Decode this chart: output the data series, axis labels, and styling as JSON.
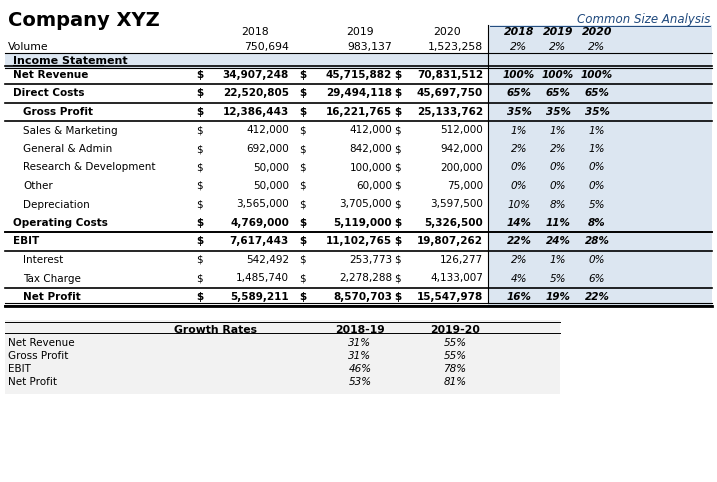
{
  "title_left": "Company XYZ",
  "title_right": "Common Size Analysis",
  "bg_color": "#ffffff",
  "header_bg": "#dce6f1",
  "years": [
    "2018",
    "2019",
    "2020"
  ],
  "volume_label": "Volume",
  "volume_values": [
    "750,694",
    "983,137",
    "1,523,258"
  ],
  "volume_pct": [
    "2%",
    "2%",
    "2%"
  ],
  "income_statement_label": "Income Statement",
  "rows": [
    {
      "label": "Net Revenue",
      "sign": [
        "$",
        "$",
        "$"
      ],
      "values": [
        "34,907,248",
        "45,715,882",
        "70,831,512"
      ],
      "pct": [
        "100%",
        "100%",
        "100%"
      ],
      "style": "bold_top_bottom",
      "indent": 0
    },
    {
      "label": "Direct Costs",
      "sign": [
        "$",
        "$",
        "$"
      ],
      "values": [
        "22,520,805",
        "29,494,118",
        "45,697,750"
      ],
      "pct": [
        "65%",
        "65%",
        "65%"
      ],
      "style": "bold_bottom",
      "indent": 0
    },
    {
      "label": "Gross Profit",
      "sign": [
        "$",
        "$",
        "$"
      ],
      "values": [
        "12,386,443",
        "16,221,765",
        "25,133,762"
      ],
      "pct": [
        "35%",
        "35%",
        "35%"
      ],
      "style": "bold_bottom",
      "indent": 1
    },
    {
      "label": "Sales & Marketing",
      "sign": [
        "$",
        "$",
        "$"
      ],
      "values": [
        "412,000",
        "412,000",
        "512,000"
      ],
      "pct": [
        "1%",
        "1%",
        "1%"
      ],
      "style": "normal",
      "indent": 1
    },
    {
      "label": "General & Admin",
      "sign": [
        "$",
        "$",
        "$"
      ],
      "values": [
        "692,000",
        "842,000",
        "942,000"
      ],
      "pct": [
        "2%",
        "2%",
        "1%"
      ],
      "style": "normal",
      "indent": 1
    },
    {
      "label": "Research & Development",
      "sign": [
        "$",
        "$",
        "$"
      ],
      "values": [
        "50,000",
        "100,000",
        "200,000"
      ],
      "pct": [
        "0%",
        "0%",
        "0%"
      ],
      "style": "normal",
      "indent": 1
    },
    {
      "label": "Other",
      "sign": [
        "$",
        "$",
        "$"
      ],
      "values": [
        "50,000",
        "60,000",
        "75,000"
      ],
      "pct": [
        "0%",
        "0%",
        "0%"
      ],
      "style": "normal",
      "indent": 1
    },
    {
      "label": "Depreciation",
      "sign": [
        "$",
        "$",
        "$"
      ],
      "values": [
        "3,565,000",
        "3,705,000",
        "3,597,500"
      ],
      "pct": [
        "10%",
        "8%",
        "5%"
      ],
      "style": "normal",
      "indent": 1
    },
    {
      "label": "Operating Costs",
      "sign": [
        "$",
        "$",
        "$"
      ],
      "values": [
        "4,769,000",
        "5,119,000",
        "5,326,500"
      ],
      "pct": [
        "14%",
        "11%",
        "8%"
      ],
      "style": "bold_bottom",
      "indent": 0
    },
    {
      "label": "EBIT",
      "sign": [
        "$",
        "$",
        "$"
      ],
      "values": [
        "7,617,443",
        "11,102,765",
        "19,807,262"
      ],
      "pct": [
        "22%",
        "24%",
        "28%"
      ],
      "style": "bold_top_bottom",
      "indent": 0
    },
    {
      "label": "Interest",
      "sign": [
        "$",
        "$",
        "$"
      ],
      "values": [
        "542,492",
        "253,773",
        "126,277"
      ],
      "pct": [
        "2%",
        "1%",
        "0%"
      ],
      "style": "normal",
      "indent": 1
    },
    {
      "label": "Tax Charge",
      "sign": [
        "$",
        "$",
        "$"
      ],
      "values": [
        "1,485,740",
        "2,278,288",
        "4,133,007"
      ],
      "pct": [
        "4%",
        "5%",
        "6%"
      ],
      "style": "normal",
      "indent": 1
    },
    {
      "label": "Net Profit",
      "sign": [
        "$",
        "$",
        "$"
      ],
      "values": [
        "5,589,211",
        "8,570,703",
        "15,547,978"
      ],
      "pct": [
        "16%",
        "19%",
        "22%"
      ],
      "style": "bold_top_bottom",
      "indent": 1
    }
  ],
  "growth_rows": [
    {
      "label": "Net Revenue",
      "y1819": "31%",
      "y1920": "55%"
    },
    {
      "label": "Gross Profit",
      "y1819": "31%",
      "y1920": "55%"
    },
    {
      "label": "EBIT",
      "y1819": "46%",
      "y1920": "78%"
    },
    {
      "label": "Net Profit",
      "y1819": "53%",
      "y1920": "81%"
    }
  ]
}
